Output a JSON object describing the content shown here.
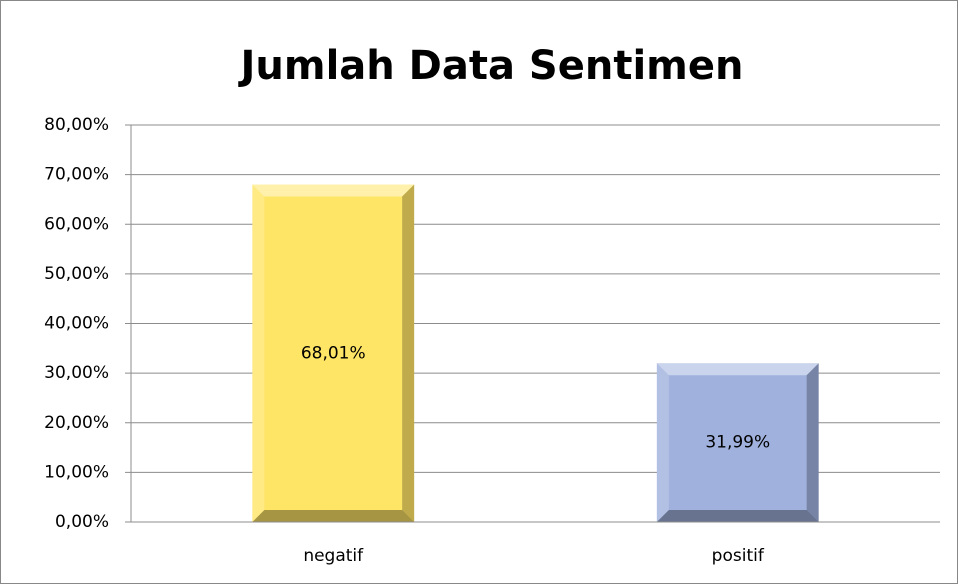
{
  "chart_data": {
    "type": "bar",
    "title": "Jumlah Data Sentimen",
    "categories": [
      "negatif",
      "positif"
    ],
    "values": [
      68.01,
      31.99
    ],
    "value_labels": [
      "68,01%",
      "31,99%"
    ],
    "colors": [
      "#ffe566",
      "#9fb1dc"
    ],
    "ylim": [
      0,
      80
    ],
    "yticks": [
      {
        "value": 0,
        "label": "0,00%"
      },
      {
        "value": 10,
        "label": "10,00%"
      },
      {
        "value": 20,
        "label": "20,00%"
      },
      {
        "value": 30,
        "label": "30,00%"
      },
      {
        "value": 40,
        "label": "40,00%"
      },
      {
        "value": 50,
        "label": "50,00%"
      },
      {
        "value": 60,
        "label": "60,00%"
      },
      {
        "value": 70,
        "label": "70,00%"
      },
      {
        "value": 80,
        "label": "80,00%"
      }
    ],
    "grid": true
  }
}
